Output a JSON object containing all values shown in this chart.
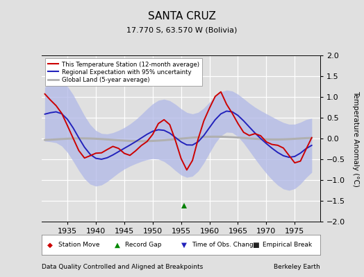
{
  "title": "SANTA CRUZ",
  "subtitle": "17.770 S, 63.570 W (Bolivia)",
  "ylabel": "Temperature Anomaly (°C)",
  "xlabel_note": "Data Quality Controlled and Aligned at Breakpoints",
  "credit": "Berkeley Earth",
  "xlim": [
    1930.5,
    1979.5
  ],
  "ylim": [
    -2,
    2
  ],
  "yticks": [
    -2,
    -1.5,
    -1,
    -0.5,
    0,
    0.5,
    1,
    1.5,
    2
  ],
  "xticks": [
    1935,
    1940,
    1945,
    1950,
    1955,
    1960,
    1965,
    1970,
    1975
  ],
  "bg_color": "#e0e0e0",
  "plot_bg_color": "#e0e0e0",
  "grid_color": "white",
  "station_color": "#cc0000",
  "regional_color": "#2222bb",
  "uncertainty_color": "#b0b8e8",
  "global_color": "#b0b0b0",
  "record_gap_x": 1955.5,
  "record_gap_y": -1.62,
  "seed": 7
}
